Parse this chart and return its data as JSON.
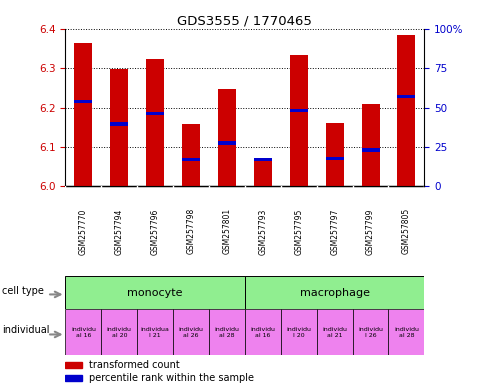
{
  "title": "GDS3555 / 1770465",
  "samples": [
    "GSM257770",
    "GSM257794",
    "GSM257796",
    "GSM257798",
    "GSM257801",
    "GSM257793",
    "GSM257795",
    "GSM257797",
    "GSM257799",
    "GSM257805"
  ],
  "transformed_count": [
    6.365,
    6.298,
    6.323,
    6.157,
    6.248,
    6.063,
    6.333,
    6.16,
    6.21,
    6.385
  ],
  "percentile_rank": [
    6.215,
    6.158,
    6.185,
    6.068,
    6.11,
    6.068,
    6.192,
    6.07,
    6.092,
    6.228
  ],
  "ylim_left": [
    6.0,
    6.4
  ],
  "ylim_right": [
    0,
    100
  ],
  "yticks_left": [
    6.0,
    6.1,
    6.2,
    6.3,
    6.4
  ],
  "yticks_right": [
    0,
    25,
    50,
    75,
    100
  ],
  "bar_color": "#CC0000",
  "percentile_color": "#0000CC",
  "left_axis_color": "#CC0000",
  "right_axis_color": "#0000CC",
  "sample_bg": "#C8C8C8",
  "cell_type_color": "#90EE90",
  "individual_color": "#EE82EE",
  "mono_samples": [
    0,
    1,
    2,
    3,
    4
  ],
  "macro_samples": [
    5,
    6,
    7,
    8,
    9
  ],
  "ind_labels": [
    "individu\nal 16",
    "individu\nal 20",
    "individua\nl 21",
    "individu\nal 26",
    "individu\nal 28",
    "individu\nal 16",
    "individu\nl 20",
    "individu\nal 21",
    "individu\nl 26",
    "individu\nal 28"
  ]
}
